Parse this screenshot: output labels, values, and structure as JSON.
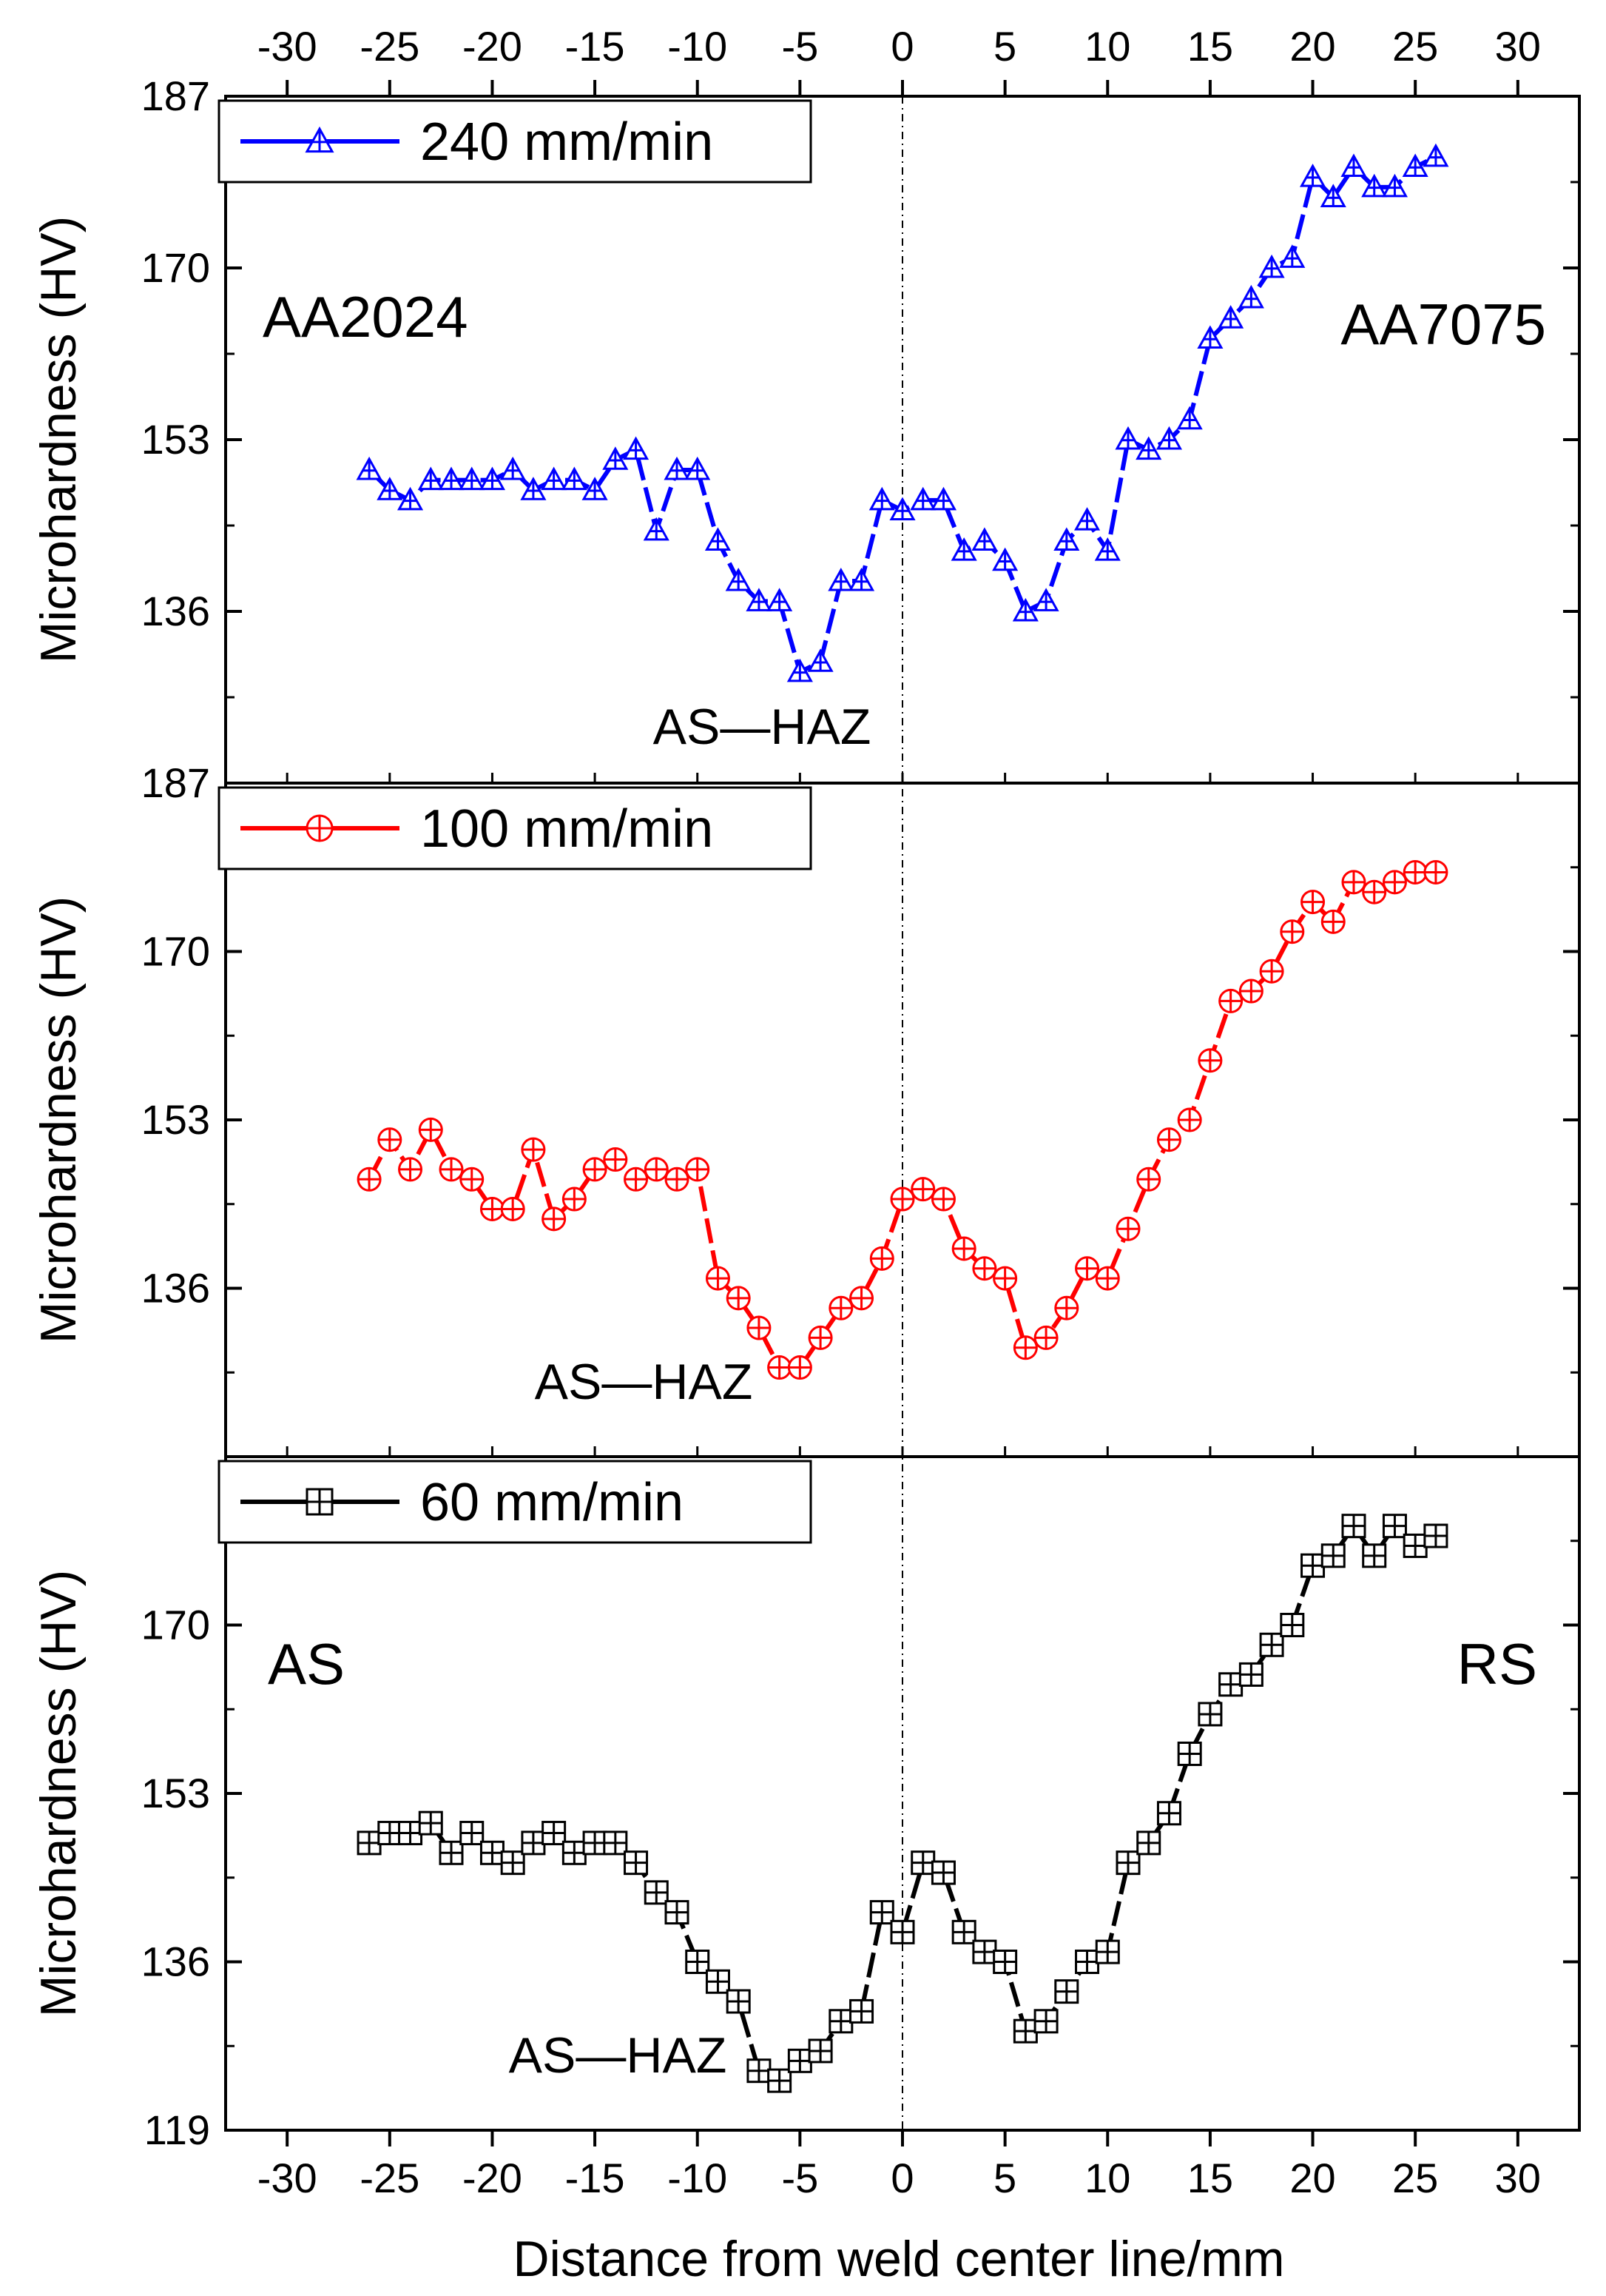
{
  "chart_data": {
    "type": "line",
    "xlabel": "Distance from weld center line/mm",
    "ylabel": "Microhardness (HV)",
    "xlim": [
      -33,
      33
    ],
    "x_ticks": [
      -30,
      -25,
      -20,
      -15,
      -10,
      -5,
      0,
      5,
      10,
      15,
      20,
      25,
      30
    ],
    "x_tick_labels": [
      "-30",
      "-25",
      "-20",
      "-15",
      "-10",
      "-5",
      "0",
      "5",
      "10",
      "15",
      "20",
      "25",
      "30"
    ],
    "ylim": [
      119,
      187
    ],
    "y_ticks": [
      119,
      136,
      153,
      170,
      187
    ],
    "panels": [
      {
        "legend": "240 mm/min",
        "color": "#0000ff",
        "marker": "triangle",
        "y_tick_labels": [
          "136",
          "153",
          "170",
          "187"
        ],
        "y_tick_values": [
          136,
          153,
          170,
          187
        ],
        "annotations": [
          "AS—HAZ",
          "AA2024",
          "AA7075"
        ],
        "x": [
          -26,
          -25,
          -24,
          -23,
          -22,
          -21,
          -20,
          -19,
          -18,
          -17,
          -16,
          -15,
          -14,
          -13,
          -12,
          -11,
          -10,
          -9,
          -8,
          -7,
          -6,
          -5,
          -4,
          -3,
          -2,
          -1,
          0,
          1,
          2,
          3,
          4,
          5,
          6,
          7,
          8,
          9,
          10,
          11,
          12,
          13,
          14,
          15,
          16,
          17,
          18,
          19,
          20,
          21,
          22,
          23,
          24,
          25,
          26
        ],
        "values": [
          150,
          148,
          147,
          149,
          149,
          149,
          149,
          150,
          148,
          149,
          149,
          148,
          151,
          152,
          144,
          150,
          150,
          143,
          139,
          137,
          137,
          130,
          131,
          139,
          139,
          147,
          146,
          147,
          147,
          142,
          143,
          141,
          136,
          137,
          143,
          145,
          142,
          153,
          152,
          153,
          155,
          163,
          165,
          167,
          170,
          171,
          179,
          177,
          180,
          178,
          178,
          180,
          181
        ]
      },
      {
        "legend": "100 mm/min",
        "color": "#ff0000",
        "marker": "circle-plus",
        "y_tick_labels": [
          "136",
          "153",
          "170",
          "187"
        ],
        "y_tick_values": [
          136,
          153,
          170,
          187
        ],
        "annotations": [
          "AS—HAZ"
        ],
        "x": [
          -26,
          -25,
          -24,
          -23,
          -22,
          -21,
          -20,
          -19,
          -18,
          -17,
          -16,
          -15,
          -14,
          -13,
          -12,
          -11,
          -10,
          -9,
          -8,
          -7,
          -6,
          -5,
          -4,
          -3,
          -2,
          -1,
          0,
          1,
          2,
          3,
          4,
          5,
          6,
          7,
          8,
          9,
          10,
          11,
          12,
          13,
          14,
          15,
          16,
          17,
          18,
          19,
          20,
          21,
          22,
          23,
          24,
          25,
          26
        ],
        "values": [
          147,
          151,
          148,
          152,
          148,
          147,
          144,
          144,
          150,
          143,
          145,
          148,
          149,
          147,
          148,
          147,
          148,
          137,
          135,
          132,
          128,
          128,
          131,
          134,
          135,
          139,
          145,
          146,
          145,
          140,
          138,
          137,
          130,
          131,
          134,
          138,
          137,
          142,
          147,
          151,
          153,
          159,
          165,
          166,
          168,
          172,
          175,
          173,
          177,
          176,
          177,
          178,
          178
        ]
      },
      {
        "legend": "60 mm/min",
        "color": "#000000",
        "marker": "square-plus",
        "y_tick_labels": [
          "119",
          "136",
          "153",
          "170"
        ],
        "y_tick_values": [
          119,
          136,
          153,
          170
        ],
        "annotations": [
          "AS—HAZ",
          "AS",
          "RS"
        ],
        "x": [
          -26,
          -25,
          -24,
          -23,
          -22,
          -21,
          -20,
          -19,
          -18,
          -17,
          -16,
          -15,
          -14,
          -13,
          -12,
          -11,
          -10,
          -9,
          -8,
          -7,
          -6,
          -5,
          -4,
          -3,
          -2,
          -1,
          0,
          1,
          2,
          3,
          4,
          5,
          6,
          7,
          8,
          9,
          10,
          11,
          12,
          13,
          14,
          15,
          16,
          17,
          18,
          19,
          20,
          21,
          22,
          23,
          24,
          25,
          26
        ],
        "values": [
          148,
          149,
          149,
          150,
          147,
          149,
          147,
          146,
          148,
          149,
          147,
          148,
          148,
          146,
          143,
          141,
          136,
          134,
          132,
          125,
          124,
          126,
          127,
          130,
          131,
          141,
          139,
          146,
          145,
          139,
          137,
          136,
          129,
          130,
          133,
          136,
          137,
          146,
          148,
          151,
          157,
          161,
          164,
          165,
          168,
          170,
          176,
          177,
          180,
          177,
          180,
          178,
          179
        ]
      }
    ]
  }
}
